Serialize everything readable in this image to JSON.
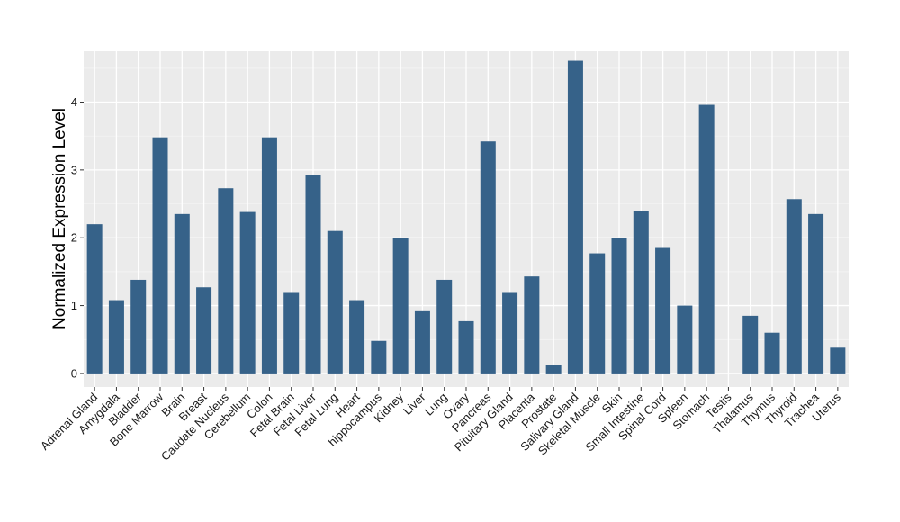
{
  "chart_data": {
    "type": "bar",
    "ylabel": "Normalized Expression Level",
    "xlabel": "",
    "ylim": [
      -0.2,
      4.75
    ],
    "yticks": [
      0,
      1,
      2,
      3,
      4
    ],
    "grid": true,
    "colors": {
      "bar": "#366289",
      "panel": "#ebebeb",
      "grid_major": "#ffffff",
      "grid_minor": "#f5f5f5"
    },
    "categories": [
      "Adrenal Gland",
      "Amygdala",
      "Bladder",
      "Bone Marrow",
      "Brain",
      "Breast",
      "Caudate Nucleus",
      "Cerebellum",
      "Colon",
      "Fetal Brain",
      "Fetal Liver",
      "Fetal Lung",
      "Heart",
      "hippocampus",
      "Kidney",
      "Liver",
      "Lung",
      "Ovary",
      "Pancreas",
      "Pituitary Gland",
      "Placenta",
      "Prostate",
      "Salivary Gland",
      "Skeletal Muscle",
      "Skin",
      "Small Intestine",
      "Spinal Cord",
      "Spleen",
      "Stomach",
      "Testis",
      "Thalamus",
      "Thymus",
      "Thyroid",
      "Trachea",
      "Uterus"
    ],
    "values": [
      2.2,
      1.08,
      1.38,
      3.48,
      2.35,
      1.27,
      2.73,
      2.38,
      3.48,
      1.2,
      2.92,
      2.1,
      1.08,
      0.48,
      2.0,
      0.93,
      1.38,
      0.77,
      3.42,
      1.2,
      1.43,
      0.13,
      4.61,
      1.77,
      2.0,
      2.4,
      1.85,
      1.0,
      3.96,
      0.0,
      0.85,
      0.6,
      2.57,
      2.35,
      0.38
    ]
  }
}
